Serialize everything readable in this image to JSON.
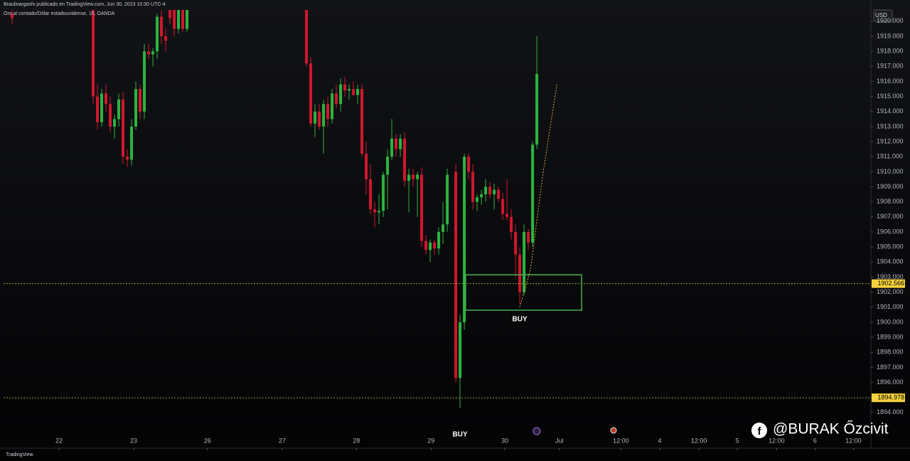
{
  "header": {
    "author_line": "Braulivargasfx publicado en TradingView.com, Jun 30, 2023 10:30 UTC-4",
    "symbol_line": "Oro al contado/Dólar estadounidense, 1h, OANDA"
  },
  "chart_data": {
    "type": "candlestick",
    "x": [
      2,
      21,
      22,
      23,
      24,
      25,
      26,
      27,
      28,
      29,
      30,
      31,
      32,
      33,
      34,
      35,
      36,
      37,
      38,
      39,
      40,
      41,
      42,
      43,
      71,
      72,
      73,
      74,
      75,
      76,
      77,
      78,
      79,
      80,
      81,
      82,
      83,
      84,
      85,
      86,
      87,
      88,
      89,
      90,
      91,
      92,
      93,
      94,
      95,
      96,
      97,
      98,
      99,
      100,
      101,
      102,
      103,
      104,
      106,
      107,
      108,
      109,
      110,
      111,
      112,
      113,
      114,
      115,
      116,
      117,
      118,
      119,
      120,
      121,
      122,
      123,
      124,
      125
    ],
    "open": [
      1920.5,
      1921,
      1915,
      1913.3,
      1915.2,
      1914.5,
      1913,
      1913.5,
      1914.8,
      1911,
      1910.8,
      1913,
      1915.5,
      1914,
      1918,
      1917.8,
      1918,
      1920.3,
      1919,
      1921,
      1921,
      1919.5,
      1920.8,
      1919.5,
      1922,
      1917.2,
      1913.2,
      1914,
      1913,
      1914.5,
      1913.5,
      1915.2,
      1914.5,
      1915.8,
      1915.4,
      1915.5,
      1915.1,
      1915.5,
      1911.2,
      1909.5,
      1907.5,
      1907.3,
      1907.4,
      1909.8,
      1911,
      1912.2,
      1911.5,
      1912.2,
      1909.4,
      1909.8,
      1909.5,
      1909.8,
      1905.4,
      1904.8,
      1905.3,
      1904.9,
      1906,
      1906.5,
      1910,
      1896.3,
      1900,
      1911,
      1910,
      1908,
      1908.3,
      1908.5,
      1909,
      1908.5,
      1908.8,
      1908.2,
      1907.2,
      1907,
      1906,
      1904.5,
      1902,
      1906,
      1905.3,
      1911.8
    ],
    "high": [
      1921,
      1921.5,
      1915.8,
      1915.5,
      1915.8,
      1915,
      1913.8,
      1915.2,
      1915.3,
      1911.5,
      1913.5,
      1916,
      1915.8,
      1918.5,
      1918.5,
      1918.2,
      1920.5,
      1921,
      1919.5,
      1921.5,
      1921.5,
      1921,
      1921.5,
      1921.5,
      1922.5,
      1917.6,
      1914.5,
      1914.5,
      1914.8,
      1915,
      1915.5,
      1915.8,
      1916.2,
      1916.3,
      1915.8,
      1916,
      1915.8,
      1915.8,
      1912,
      1910.5,
      1908,
      1908.5,
      1910,
      1911.5,
      1913.5,
      1912.5,
      1912.5,
      1912.6,
      1910.2,
      1910.2,
      1910,
      1910.3,
      1905.8,
      1905.5,
      1905.5,
      1906.3,
      1908,
      1910.2,
      1910.5,
      1900.5,
      1911.2,
      1911.2,
      1910.5,
      1908.5,
      1908.8,
      1909.5,
      1909.3,
      1909.2,
      1909,
      1908.6,
      1909.5,
      1907.5,
      1906.5,
      1905,
      1906.5,
      1906.2,
      1912,
      1919
    ],
    "low": [
      1919.8,
      1914.5,
      1912.8,
      1913,
      1914,
      1912.6,
      1912.2,
      1913,
      1910.5,
      1910.3,
      1910.4,
      1912.8,
      1913.5,
      1913.5,
      1917.5,
      1917,
      1917.5,
      1918.5,
      1918,
      1919.8,
      1919,
      1919.2,
      1919.3,
      1919.3,
      1917,
      1913,
      1912.3,
      1912.8,
      1911.2,
      1913,
      1913.2,
      1914.2,
      1914,
      1915,
      1914.8,
      1915,
      1914.5,
      1911,
      1908.5,
      1907.2,
      1906.3,
      1906.5,
      1907,
      1907.5,
      1910.8,
      1911,
      1911,
      1909,
      1907.3,
      1909,
      1907,
      1905,
      1904.5,
      1904,
      1904.5,
      1904.5,
      1905.2,
      1906,
      1896,
      1894.3,
      1899.5,
      1909.5,
      1907.5,
      1907.4,
      1907.8,
      1908,
      1908.2,
      1907.5,
      1908,
      1906.8,
      1906.8,
      1905.5,
      1903,
      1901.2,
      1901.8,
      1904.8,
      1905,
      1911.5
    ],
    "close": [
      1920.2,
      1915,
      1913.3,
      1915.2,
      1914.5,
      1913,
      1913.5,
      1914.8,
      1911,
      1910.8,
      1913,
      1915.5,
      1914,
      1918,
      1917.8,
      1918,
      1920.3,
      1919,
      1918.7,
      1920.2,
      1919.5,
      1920.8,
      1919.5,
      1921.2,
      1917.2,
      1913.2,
      1914,
      1913,
      1914.5,
      1913.5,
      1915.2,
      1914.5,
      1915.8,
      1915.4,
      1915.5,
      1915.1,
      1915.5,
      1911.2,
      1909.5,
      1907.5,
      1907.3,
      1907.4,
      1909.8,
      1911,
      1912.2,
      1911.5,
      1912.2,
      1909.4,
      1909.8,
      1909.5,
      1909.8,
      1905.4,
      1904.8,
      1905.3,
      1904.9,
      1906,
      1906.5,
      1909.8,
      1896.3,
      1900,
      1911,
      1910,
      1908,
      1908.3,
      1908.5,
      1909,
      1908.5,
      1908.8,
      1908.2,
      1907.2,
      1907,
      1906,
      1904.5,
      1902,
      1906,
      1905.3,
      1911.8,
      1916.5
    ],
    "up_color": "#2db43f",
    "down_color": "#d0182e",
    "xlim": [
      0,
      203.3
    ],
    "xticks": [
      {
        "value": 13,
        "label": "22"
      },
      {
        "value": 30.5,
        "label": "23"
      },
      {
        "value": 47.8,
        "label": "26"
      },
      {
        "value": 65.3,
        "label": "27"
      },
      {
        "value": 82.7,
        "label": "28"
      },
      {
        "value": 100.2,
        "label": "29"
      },
      {
        "value": 117.5,
        "label": "30"
      },
      {
        "value": 130.3,
        "label": "Jul"
      },
      {
        "value": 144.7,
        "label": "12:00"
      },
      {
        "value": 153.8,
        "label": "4"
      },
      {
        "value": 163,
        "label": "12:00"
      },
      {
        "value": 172,
        "label": "5"
      },
      {
        "value": 181.2,
        "label": "12:00"
      },
      {
        "value": 190.2,
        "label": "6"
      },
      {
        "value": 199.2,
        "label": "12:00"
      }
    ],
    "ylim": [
      1893,
      1920.75
    ],
    "yticks": [
      {
        "value": 1894,
        "label": "1894.000"
      },
      {
        "value": 1895,
        "label": "1895.000"
      },
      {
        "value": 1896,
        "label": "1896.000"
      },
      {
        "value": 1897,
        "label": "1897.000"
      },
      {
        "value": 1898,
        "label": "1898.000"
      },
      {
        "value": 1899,
        "label": "1899.000"
      },
      {
        "value": 1900,
        "label": "1900.000"
      },
      {
        "value": 1901,
        "label": "1901.000"
      },
      {
        "value": 1902,
        "label": "1902.000"
      },
      {
        "value": 1903,
        "label": "1903.000"
      },
      {
        "value": 1904,
        "label": "1904.000"
      },
      {
        "value": 1905,
        "label": "1905.000"
      },
      {
        "value": 1906,
        "label": "1906.000"
      },
      {
        "value": 1907,
        "label": "1907.000"
      },
      {
        "value": 1908,
        "label": "1908.000"
      },
      {
        "value": 1909,
        "label": "1909.000"
      },
      {
        "value": 1910,
        "label": "1910.000"
      },
      {
        "value": 1911,
        "label": "1911.000"
      },
      {
        "value": 1912,
        "label": "1912.000"
      },
      {
        "value": 1913,
        "label": "1913.000"
      },
      {
        "value": 1914,
        "label": "1914.000"
      },
      {
        "value": 1915,
        "label": "1915.000"
      },
      {
        "value": 1916,
        "label": "1916.000"
      },
      {
        "value": 1917,
        "label": "1917.000"
      },
      {
        "value": 1918,
        "label": "1918.000"
      },
      {
        "value": 1919,
        "label": "1919.000"
      },
      {
        "value": 1920,
        "label": "1920.000"
      }
    ],
    "currency": "USD",
    "price_lines": [
      {
        "value": 1902.566,
        "label": "1902.566",
        "color": "#9a9a3c"
      },
      {
        "value": 1894.978,
        "label": "1894.978",
        "color": "#9a9a3c"
      }
    ],
    "zone": {
      "x": [
        108.3,
        135.5
      ],
      "y": [
        1900.8,
        1903.15
      ],
      "color": "#4caf50",
      "label": "BUY"
    },
    "arrow": {
      "x": [
        121,
        123.5,
        126.5,
        129.7
      ],
      "y": [
        1901,
        1903.5,
        1910,
        1915.8
      ],
      "color": "#d9a441"
    },
    "cut_label": "BUY"
  },
  "footer": {
    "brand": "TradingView"
  },
  "watermark": "@BURAK Őzcivit"
}
